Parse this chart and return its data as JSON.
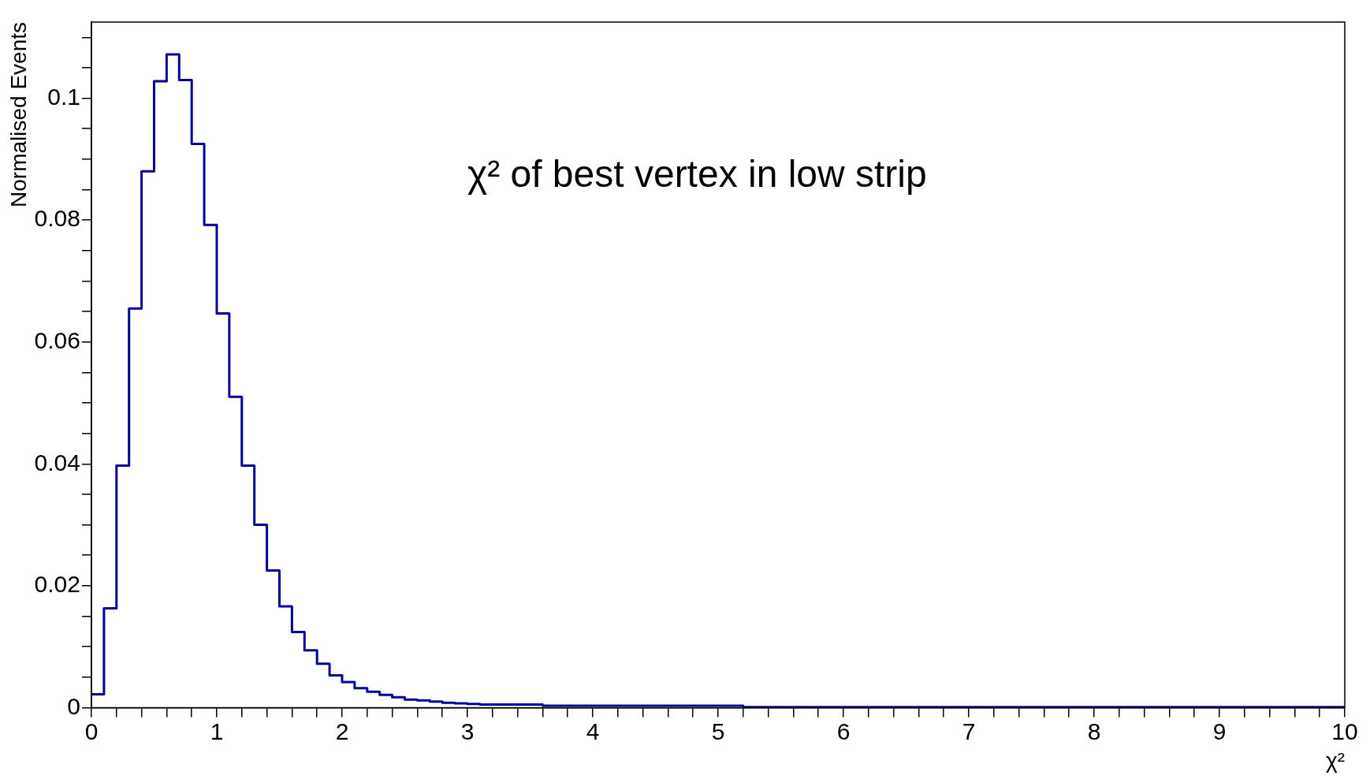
{
  "chart_data": {
    "type": "histogram",
    "xlabel": "χ²",
    "ylabel": "Normalised Events",
    "annotations": [
      "χ² of best vertex in low strip"
    ],
    "color": "#00009c",
    "bins": [
      0,
      0.1,
      0.2,
      0.3,
      0.4,
      0.5,
      0.6,
      0.7,
      0.8,
      0.9,
      1,
      1.1,
      1.2,
      1.3,
      1.4,
      1.5,
      1.6,
      1.7,
      1.8,
      1.9,
      2,
      2.1,
      2.2,
      2.3,
      2.4,
      2.5,
      2.6,
      2.7,
      2.8,
      2.9,
      3,
      3.1,
      3.2,
      3.3,
      3.4,
      3.5,
      3.6,
      3.7,
      3.8,
      3.9,
      4,
      4.1,
      4.2,
      4.3,
      4.4,
      4.5,
      4.6,
      4.7,
      4.8,
      4.9,
      5,
      5.1,
      5.2,
      5.3,
      5.4,
      5.5,
      5.6,
      5.7,
      5.8,
      5.9,
      6,
      6.1,
      6.2,
      6.3,
      6.4,
      6.5,
      6.6,
      6.7,
      6.8,
      6.9,
      7,
      7.1,
      7.2,
      7.3,
      7.4,
      7.5,
      7.6,
      7.7,
      7.8,
      7.9,
      8,
      8.1,
      8.2,
      8.3,
      8.4,
      8.5,
      8.6,
      8.7,
      8.8,
      8.9,
      9,
      9.1,
      9.2,
      9.3,
      9.4,
      9.5,
      9.6,
      9.7,
      9.8,
      9.9,
      10
    ],
    "values": [
      0.0022,
      0.0163,
      0.0397,
      0.0655,
      0.088,
      0.1028,
      0.1072,
      0.103,
      0.0925,
      0.0792,
      0.0647,
      0.051,
      0.0397,
      0.03,
      0.0225,
      0.0166,
      0.0124,
      0.0094,
      0.0072,
      0.0053,
      0.0042,
      0.0032,
      0.0026,
      0.0021,
      0.0017,
      0.0013,
      0.0012,
      0.001,
      0.0008,
      0.0007,
      0.0006,
      0.0005,
      0.0005,
      0.0005,
      0.0005,
      0.0005,
      0.0003,
      0.0003,
      0.0003,
      0.0003,
      0.0003,
      0.0003,
      0.0003,
      0.0003,
      0.0003,
      0.0003,
      0.0003,
      0.0003,
      0.0003,
      0.0003,
      0.0003,
      0.0003,
      0.0001,
      0.0001,
      0.0001,
      0.0001,
      0.0001,
      0.0001,
      0.0001,
      0.0001,
      0.0001,
      0.0001,
      0.0001,
      0.0001,
      0.0001,
      0.0001,
      0.0001,
      0.0001,
      0.0001,
      0.0001,
      0.0001,
      0.0001,
      0.0001,
      0.0001,
      0.0001,
      0.0001,
      0.0001,
      0.0001,
      0.0001,
      0.0001,
      0.0001,
      0.0001,
      0.0001,
      0.0001,
      0.0001,
      0.0001,
      0.0001,
      0.0001,
      0.0001,
      0.0001,
      0.0001,
      0.0001,
      0.0001,
      0.0001,
      0.0001,
      0.0001,
      0.0001,
      0.0001,
      0.0001,
      0.0001
    ],
    "xlim": [
      0,
      10
    ],
    "ylim": [
      0,
      0.1125
    ],
    "xticks": [
      0,
      {
        "value": 0.2,
        "label": null
      },
      {
        "value": 0.4,
        "label": null
      },
      {
        "value": 0.6,
        "label": null
      },
      {
        "value": 0.8,
        "label": null
      },
      1,
      {
        "value": 1.2,
        "label": null
      },
      {
        "value": 1.4,
        "label": null
      },
      {
        "value": 1.6,
        "label": null
      },
      {
        "value": 1.8,
        "label": null
      },
      2,
      {
        "value": 2.2,
        "label": null
      },
      {
        "value": 2.4,
        "label": null
      },
      {
        "value": 2.6,
        "label": null
      },
      {
        "value": 2.8,
        "label": null
      },
      3,
      {
        "value": 3.2,
        "label": null
      },
      {
        "value": 3.4,
        "label": null
      },
      {
        "value": 3.6,
        "label": null
      },
      {
        "value": 3.8,
        "label": null
      },
      4,
      {
        "value": 4.2,
        "label": null
      },
      {
        "value": 4.4,
        "label": null
      },
      {
        "value": 4.6,
        "label": null
      },
      {
        "value": 4.8,
        "label": null
      },
      5,
      {
        "value": 5.2,
        "label": null
      },
      {
        "value": 5.4,
        "label": null
      },
      {
        "value": 5.6,
        "label": null
      },
      {
        "value": 5.8,
        "label": null
      },
      6,
      {
        "value": 6.2,
        "label": null
      },
      {
        "value": 6.4,
        "label": null
      },
      {
        "value": 6.6,
        "label": null
      },
      {
        "value": 6.8,
        "label": null
      },
      7,
      {
        "value": 7.2,
        "label": null
      },
      {
        "value": 7.4,
        "label": null
      },
      {
        "value": 7.6,
        "label": null
      },
      {
        "value": 7.8,
        "label": null
      },
      8,
      {
        "value": 8.2,
        "label": null
      },
      {
        "value": 8.4,
        "label": null
      },
      {
        "value": 8.6,
        "label": null
      },
      {
        "value": 8.8,
        "label": null
      },
      9,
      {
        "value": 9.2,
        "label": null
      },
      {
        "value": 9.4,
        "label": null
      },
      {
        "value": 9.6,
        "label": null
      },
      {
        "value": 9.8,
        "label": null
      },
      10
    ],
    "yticks": [
      0,
      {
        "value": 0.005,
        "label": null
      },
      {
        "value": 0.01,
        "label": null
      },
      {
        "value": 0.015,
        "label": null
      },
      0.02,
      {
        "value": 0.025,
        "label": null
      },
      {
        "value": 0.03,
        "label": null
      },
      {
        "value": 0.035,
        "label": null
      },
      0.04,
      {
        "value": 0.045,
        "label": null
      },
      {
        "value": 0.05,
        "label": null
      },
      {
        "value": 0.055,
        "label": null
      },
      0.06,
      {
        "value": 0.065,
        "label": null
      },
      {
        "value": 0.07,
        "label": null
      },
      {
        "value": 0.075,
        "label": null
      },
      0.08,
      {
        "value": 0.085,
        "label": null
      },
      {
        "value": 0.09,
        "label": null
      },
      {
        "value": 0.095,
        "label": null
      },
      0.1,
      {
        "value": 0.105,
        "label": null
      },
      {
        "value": 0.11,
        "label": null
      }
    ],
    "grid": false,
    "legend": false
  }
}
